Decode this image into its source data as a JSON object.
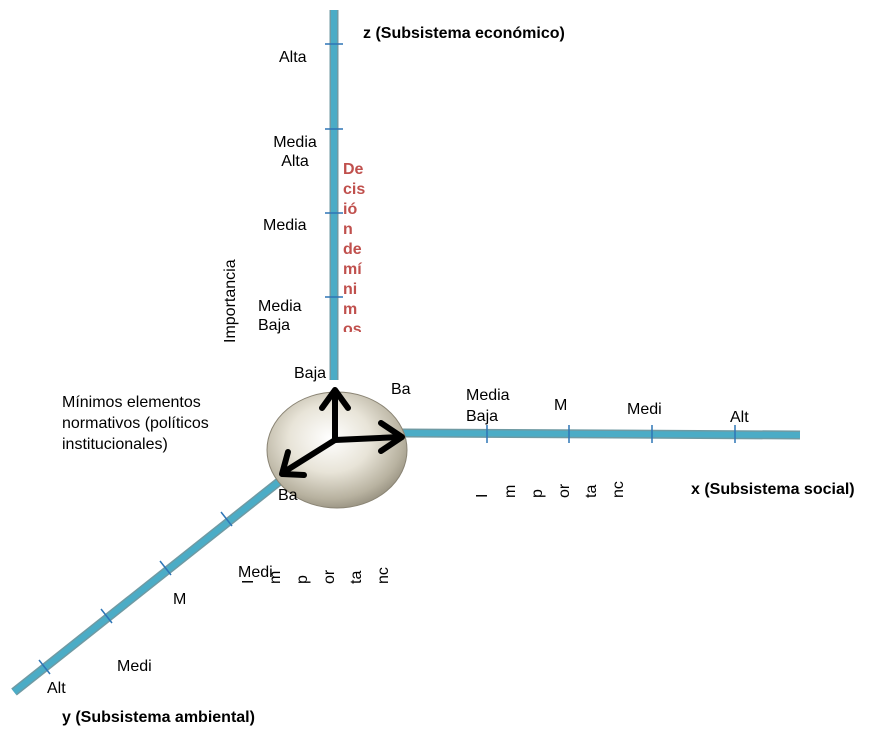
{
  "axes": {
    "z": {
      "title": "z (Subsistema económico)",
      "levels": [
        "Alta",
        "Media Alta",
        "Media",
        "Media Baja",
        "Baja"
      ]
    },
    "x": {
      "title": "x (Subsistema  social)",
      "levels": [
        "Ba",
        "Media Baja",
        "M",
        "Medi",
        "Alt"
      ],
      "vertical_fragments": [
        "I",
        "m",
        "p",
        "or",
        "ta",
        "nc"
      ]
    },
    "y": {
      "title": "y (Subsistema  ambiental)",
      "levels": [
        "Ba",
        "Medi",
        "M",
        "Medi",
        "Alt"
      ],
      "vertical_fragments": [
        "I",
        "m",
        "p",
        "or",
        "ta",
        "nc"
      ]
    }
  },
  "importance_label": "Importancia",
  "decision_fragments": [
    "De",
    "cis",
    "ió",
    "n",
    "de",
    "mí",
    "ni",
    "m",
    "os"
  ],
  "origin_text": "Mínimos elementos normativos (políticos institucionales)",
  "colors": {
    "axis": "#4bacc6",
    "axis_outline": "#7a9aa0",
    "decision": "#c0504d",
    "arrow": "#000000"
  }
}
